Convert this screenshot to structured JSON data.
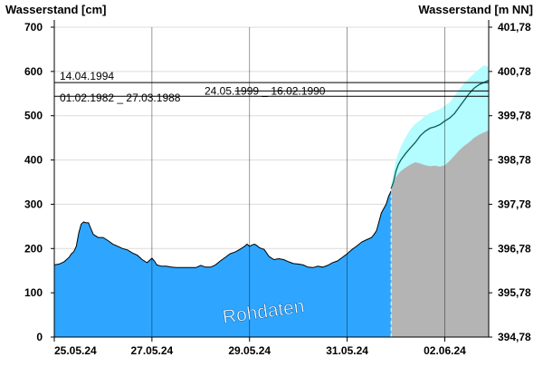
{
  "chart_data": {
    "type": "area",
    "ylabel_left": "Wasserstand [cm]",
    "ylabel_right": "Wasserstand [m NN]",
    "ylim": [
      0,
      700
    ],
    "yticks_left": [
      "0",
      "100",
      "200",
      "300",
      "400",
      "500",
      "600",
      "700"
    ],
    "yticks_right": [
      "394,78",
      "395,78",
      "396,78",
      "397,78",
      "398,78",
      "399,78",
      "400,78",
      "401,78"
    ],
    "xlim": [
      0,
      8.9
    ],
    "x_unit": "days since 25.05.24 00:00",
    "xticks": [
      {
        "x": 0,
        "label": "25.05.24"
      },
      {
        "x": 2,
        "label": "27.05.24"
      },
      {
        "x": 4,
        "label": "29.05.24"
      },
      {
        "x": 6,
        "label": "31.05.24"
      },
      {
        "x": 8,
        "label": "02.06.24"
      }
    ],
    "forecast_start": 6.9,
    "colors": {
      "measured_fill": "#2ea6ff",
      "forecast_lower_fill": "#b4b4b4",
      "forecast_band_fill": "#b3fcff",
      "forecast_line": "#0b5e5a"
    },
    "reference_levels": [
      {
        "value": 575,
        "label": "14.04.1994"
      },
      {
        "value": 556,
        "label": "24.05.1999 _ 16.02.1990"
      },
      {
        "value": 544,
        "label": "01.02.1982 _ 27.03.1988"
      }
    ],
    "watermark": "Rohdaten",
    "series_measured": [
      [
        0.0,
        163
      ],
      [
        0.1,
        165
      ],
      [
        0.2,
        170
      ],
      [
        0.3,
        180
      ],
      [
        0.35,
        188
      ],
      [
        0.4,
        193
      ],
      [
        0.45,
        205
      ],
      [
        0.5,
        235
      ],
      [
        0.55,
        255
      ],
      [
        0.6,
        260
      ],
      [
        0.65,
        258
      ],
      [
        0.7,
        258
      ],
      [
        0.75,
        245
      ],
      [
        0.8,
        232
      ],
      [
        0.9,
        225
      ],
      [
        1.0,
        225
      ],
      [
        1.1,
        218
      ],
      [
        1.2,
        210
      ],
      [
        1.3,
        205
      ],
      [
        1.4,
        200
      ],
      [
        1.5,
        197
      ],
      [
        1.6,
        190
      ],
      [
        1.7,
        185
      ],
      [
        1.8,
        175
      ],
      [
        1.9,
        168
      ],
      [
        2.0,
        178
      ],
      [
        2.05,
        172
      ],
      [
        2.1,
        163
      ],
      [
        2.2,
        160
      ],
      [
        2.3,
        160
      ],
      [
        2.4,
        158
      ],
      [
        2.5,
        157
      ],
      [
        2.7,
        157
      ],
      [
        2.9,
        157
      ],
      [
        3.0,
        162
      ],
      [
        3.1,
        158
      ],
      [
        3.2,
        158
      ],
      [
        3.3,
        163
      ],
      [
        3.4,
        172
      ],
      [
        3.5,
        180
      ],
      [
        3.6,
        188
      ],
      [
        3.7,
        192
      ],
      [
        3.8,
        198
      ],
      [
        3.9,
        205
      ],
      [
        3.95,
        210
      ],
      [
        4.0,
        205
      ],
      [
        4.05,
        208
      ],
      [
        4.1,
        210
      ],
      [
        4.15,
        207
      ],
      [
        4.2,
        202
      ],
      [
        4.3,
        198
      ],
      [
        4.35,
        190
      ],
      [
        4.4,
        182
      ],
      [
        4.5,
        175
      ],
      [
        4.6,
        177
      ],
      [
        4.7,
        175
      ],
      [
        4.8,
        170
      ],
      [
        4.9,
        166
      ],
      [
        5.0,
        165
      ],
      [
        5.1,
        163
      ],
      [
        5.2,
        158
      ],
      [
        5.3,
        157
      ],
      [
        5.4,
        160
      ],
      [
        5.5,
        158
      ],
      [
        5.6,
        162
      ],
      [
        5.7,
        168
      ],
      [
        5.8,
        172
      ],
      [
        5.9,
        180
      ],
      [
        6.0,
        188
      ],
      [
        6.1,
        198
      ],
      [
        6.2,
        206
      ],
      [
        6.3,
        215
      ],
      [
        6.4,
        220
      ],
      [
        6.5,
        225
      ],
      [
        6.55,
        232
      ],
      [
        6.6,
        240
      ],
      [
        6.65,
        260
      ],
      [
        6.7,
        280
      ],
      [
        6.75,
        290
      ],
      [
        6.8,
        300
      ],
      [
        6.85,
        318
      ],
      [
        6.9,
        330
      ]
    ],
    "series_forecast_mean": [
      [
        6.9,
        335
      ],
      [
        6.95,
        350
      ],
      [
        7.0,
        375
      ],
      [
        7.05,
        390
      ],
      [
        7.1,
        400
      ],
      [
        7.2,
        415
      ],
      [
        7.3,
        428
      ],
      [
        7.4,
        440
      ],
      [
        7.5,
        455
      ],
      [
        7.6,
        465
      ],
      [
        7.7,
        472
      ],
      [
        7.8,
        475
      ],
      [
        7.9,
        480
      ],
      [
        8.0,
        488
      ],
      [
        8.1,
        495
      ],
      [
        8.2,
        505
      ],
      [
        8.3,
        520
      ],
      [
        8.4,
        535
      ],
      [
        8.5,
        550
      ],
      [
        8.6,
        562
      ],
      [
        8.7,
        570
      ],
      [
        8.8,
        575
      ],
      [
        8.9,
        580
      ]
    ],
    "series_forecast_upper": [
      [
        6.9,
        340
      ],
      [
        7.0,
        400
      ],
      [
        7.1,
        430
      ],
      [
        7.2,
        452
      ],
      [
        7.3,
        470
      ],
      [
        7.4,
        482
      ],
      [
        7.5,
        490
      ],
      [
        7.6,
        500
      ],
      [
        7.7,
        506
      ],
      [
        7.8,
        510
      ],
      [
        7.9,
        515
      ],
      [
        8.0,
        523
      ],
      [
        8.1,
        530
      ],
      [
        8.2,
        545
      ],
      [
        8.3,
        560
      ],
      [
        8.4,
        573
      ],
      [
        8.5,
        585
      ],
      [
        8.6,
        595
      ],
      [
        8.7,
        605
      ],
      [
        8.8,
        614
      ],
      [
        8.9,
        610
      ]
    ],
    "series_forecast_lower": [
      [
        6.9,
        330
      ],
      [
        7.0,
        362
      ],
      [
        7.1,
        375
      ],
      [
        7.2,
        383
      ],
      [
        7.3,
        390
      ],
      [
        7.4,
        395
      ],
      [
        7.5,
        392
      ],
      [
        7.6,
        388
      ],
      [
        7.7,
        386
      ],
      [
        7.8,
        387
      ],
      [
        7.9,
        385
      ],
      [
        8.0,
        388
      ],
      [
        8.1,
        398
      ],
      [
        8.2,
        410
      ],
      [
        8.3,
        422
      ],
      [
        8.4,
        432
      ],
      [
        8.5,
        440
      ],
      [
        8.6,
        450
      ],
      [
        8.7,
        457
      ],
      [
        8.8,
        462
      ],
      [
        8.9,
        467
      ]
    ]
  }
}
